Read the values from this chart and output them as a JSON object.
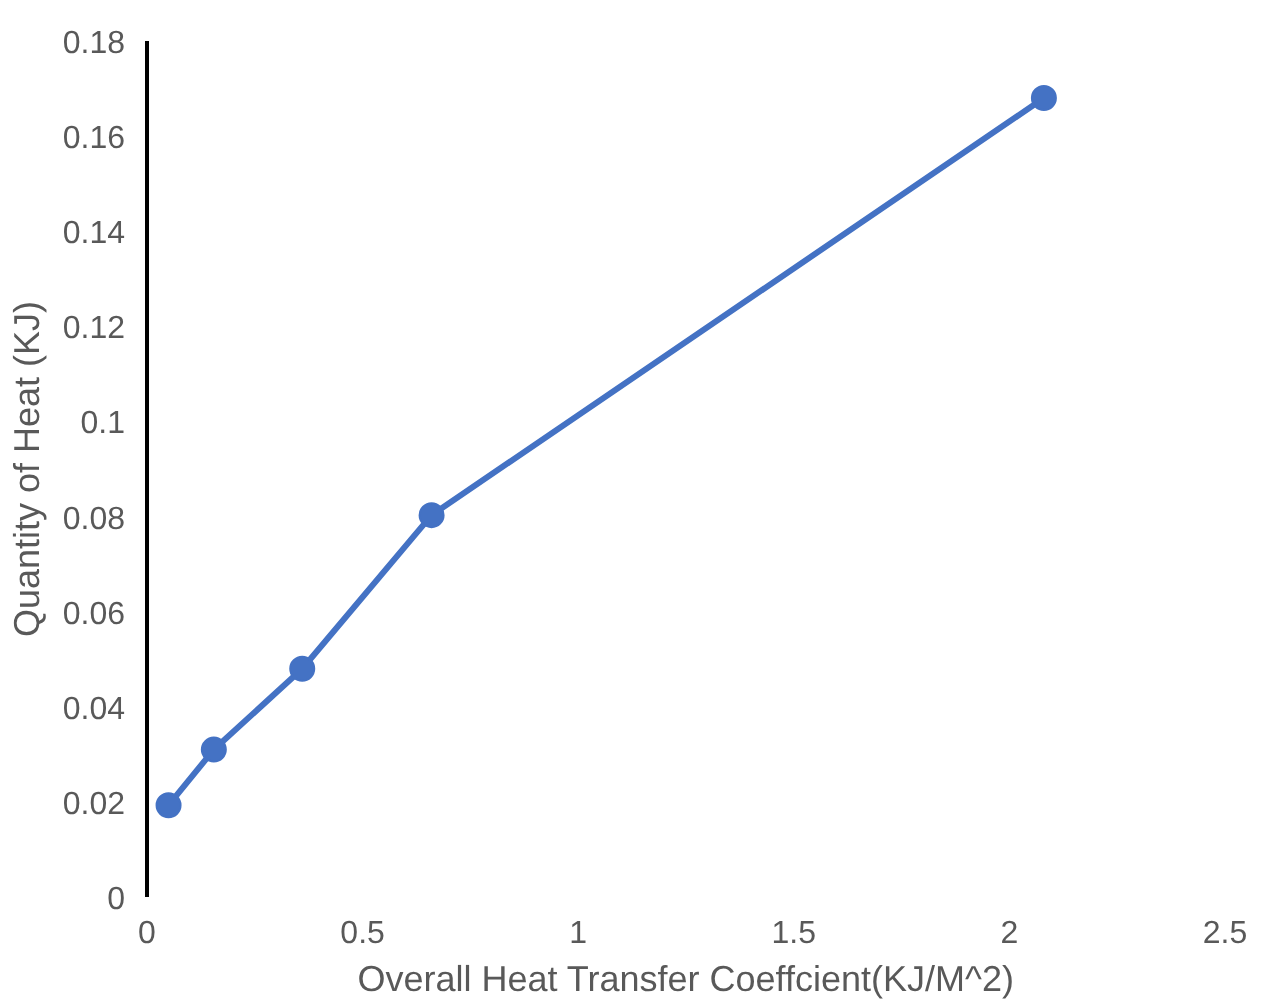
{
  "chart_data": {
    "type": "line",
    "xlabel": "Overall Heat Transfer Coeffcient(KJ/M^2)",
    "ylabel": "Quantity of Heat (KJ)",
    "x": [
      0.05,
      0.155,
      0.36,
      0.66,
      2.08
    ],
    "series": [
      {
        "color": "#4472c4",
        "values": [
          0.0193,
          0.031,
          0.048,
          0.0803,
          0.168
        ]
      }
    ],
    "xlim": [
      0,
      2.5
    ],
    "ylim": [
      0,
      0.18
    ],
    "xticks": [
      0,
      0.5,
      1,
      1.5,
      2,
      2.5
    ],
    "yticks": [
      0,
      0.02,
      0.04,
      0.06,
      0.08,
      0.1,
      0.12,
      0.14,
      0.16,
      0.18
    ],
    "grid": false,
    "marker": "circle",
    "line_style": "solid"
  }
}
